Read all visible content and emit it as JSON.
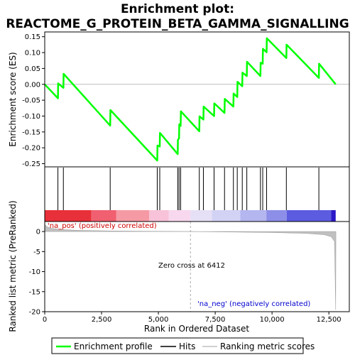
{
  "title_line1": "Enrichment plot:",
  "title_line2": "REACTOME_G_PROTEIN_BETA_GAMMA_SIGNALLING",
  "colors": {
    "profile": "#00ff00",
    "hits": "#000000",
    "metric": "#c0c0c0",
    "pos_label": "#cc0000",
    "neg_label": "#0000cc",
    "zero_line": "#aaaaaa"
  },
  "chart_data": {
    "type": "line",
    "n_genes": 12900,
    "xlabel": "Rank in Ordered Dataset",
    "xticks": [
      0,
      2500,
      5000,
      7500,
      10000,
      12500
    ],
    "top": {
      "ylabel": "Enrichment score (ES)",
      "ylim": [
        -0.26,
        0.165
      ],
      "yticks": [
        -0.25,
        -0.2,
        -0.15,
        -0.1,
        -0.05,
        0.0,
        0.05,
        0.1,
        0.15
      ],
      "ytick_labels": [
        "-0.25",
        "-0.20",
        "-0.15",
        "-0.10",
        "-0.05",
        "0.00",
        "0.05",
        "0.10",
        "0.15"
      ],
      "es_points": [
        [
          0,
          0.0
        ],
        [
          580,
          -0.044
        ],
        [
          590,
          0.003
        ],
        [
          820,
          -0.011
        ],
        [
          830,
          0.033
        ],
        [
          2880,
          -0.13
        ],
        [
          2890,
          -0.081
        ],
        [
          4950,
          -0.24
        ],
        [
          4960,
          -0.193
        ],
        [
          5060,
          -0.196
        ],
        [
          5070,
          -0.153
        ],
        [
          5850,
          -0.22
        ],
        [
          5860,
          -0.175
        ],
        [
          5910,
          -0.17
        ],
        [
          5920,
          -0.126
        ],
        [
          5980,
          -0.131
        ],
        [
          5990,
          -0.085
        ],
        [
          6800,
          -0.148
        ],
        [
          6810,
          -0.101
        ],
        [
          6980,
          -0.111
        ],
        [
          6990,
          -0.07
        ],
        [
          7450,
          -0.1
        ],
        [
          7460,
          -0.06
        ],
        [
          7910,
          -0.09
        ],
        [
          7920,
          -0.046
        ],
        [
          8300,
          -0.07
        ],
        [
          8310,
          -0.029
        ],
        [
          8470,
          -0.04
        ],
        [
          8480,
          0.008
        ],
        [
          8690,
          -0.006
        ],
        [
          8700,
          0.037
        ],
        [
          8890,
          0.026
        ],
        [
          8900,
          0.071
        ],
        [
          9490,
          0.026
        ],
        [
          9500,
          0.068
        ],
        [
          9590,
          0.065
        ],
        [
          9600,
          0.112
        ],
        [
          9760,
          0.101
        ],
        [
          9770,
          0.145
        ],
        [
          10630,
          0.083
        ],
        [
          10640,
          0.125
        ],
        [
          12060,
          0.02
        ],
        [
          12070,
          0.065
        ],
        [
          12800,
          0.0
        ]
      ]
    },
    "hits": [
      580,
      820,
      2880,
      4950,
      5060,
      5850,
      5910,
      5980,
      6800,
      6980,
      7450,
      7910,
      8300,
      8470,
      8690,
      8890,
      9490,
      9590,
      9760,
      10630,
      12060
    ],
    "bottom": {
      "ylabel": "Ranked list metric (PreRanked)",
      "ylim": [
        -20,
        2.5
      ],
      "yticks": [
        0,
        -5,
        -10,
        -15,
        -20
      ],
      "ytick_labels": [
        "0",
        "-5",
        "-10",
        "-15",
        "-20"
      ],
      "metric_points": [
        [
          0,
          1.8
        ],
        [
          100,
          1.2
        ],
        [
          300,
          0.8
        ],
        [
          700,
          0.5
        ],
        [
          1500,
          0.3
        ],
        [
          3000,
          0.15
        ],
        [
          5000,
          0.05
        ],
        [
          6412,
          0.0
        ],
        [
          8000,
          -0.1
        ],
        [
          10000,
          -0.25
        ],
        [
          11500,
          -0.45
        ],
        [
          12300,
          -0.8
        ],
        [
          12600,
          -1.3
        ],
        [
          12750,
          -2.5
        ],
        [
          12800,
          -19.5
        ],
        [
          12810,
          0.0
        ]
      ],
      "zero_cross": 6412
    },
    "color_bar": [
      {
        "start": 0,
        "end": 2050,
        "color": "#e8303a"
      },
      {
        "start": 2050,
        "end": 3150,
        "color": "#f06070"
      },
      {
        "start": 3150,
        "end": 4600,
        "color": "#f59aa4"
      },
      {
        "start": 4600,
        "end": 5450,
        "color": "#f8c2d8"
      },
      {
        "start": 5450,
        "end": 6412,
        "color": "#f8d8ee"
      },
      {
        "start": 6412,
        "end": 7350,
        "color": "#e6e0f6"
      },
      {
        "start": 7350,
        "end": 8600,
        "color": "#d2d2f4"
      },
      {
        "start": 8600,
        "end": 9750,
        "color": "#b4b6f0"
      },
      {
        "start": 9750,
        "end": 10650,
        "color": "#8c8ee8"
      },
      {
        "start": 10650,
        "end": 12600,
        "color": "#5c5ce0"
      },
      {
        "start": 12600,
        "end": 12800,
        "color": "#2a18c8"
      }
    ],
    "annotations": {
      "pos": "'na_pos' (positively correlated)",
      "neg": "'na_neg' (negatively correlated)",
      "zero": "Zero cross at 6412"
    },
    "legend": [
      "Enrichment profile",
      "Hits",
      "Ranking metric scores"
    ]
  }
}
